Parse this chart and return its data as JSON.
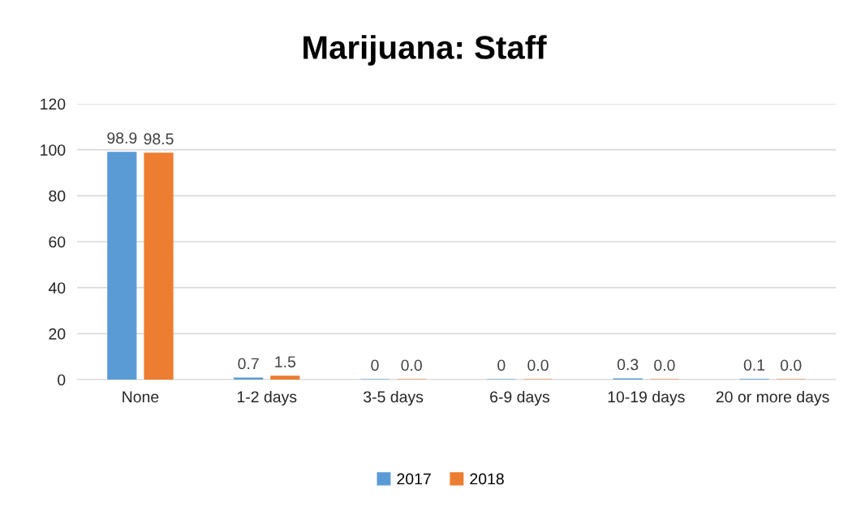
{
  "chart_data": {
    "type": "bar",
    "title": "Marijuana: Staff",
    "categories": [
      "None",
      "1-2 days",
      "3-5 days",
      "6-9 days",
      "10-19 days",
      "20 or more days"
    ],
    "series": [
      {
        "name": "2017",
        "color": "#5b9bd5",
        "values": [
          98.9,
          0.7,
          0,
          0,
          0.3,
          0.1
        ],
        "value_labels": [
          "98.9",
          "0.7",
          "0",
          "0",
          "0.3",
          "0.1"
        ]
      },
      {
        "name": "2018",
        "color": "#ed7d31",
        "values": [
          98.5,
          1.5,
          0.0,
          0.0,
          0.0,
          0.0
        ],
        "value_labels": [
          "98.5",
          "1.5",
          "0.0",
          "0.0",
          "0.0",
          "0.0"
        ]
      }
    ],
    "ylim": [
      0,
      120
    ],
    "yticks": [
      0,
      20,
      40,
      60,
      80,
      100,
      120
    ],
    "grid": "y",
    "legend": "bottom"
  }
}
